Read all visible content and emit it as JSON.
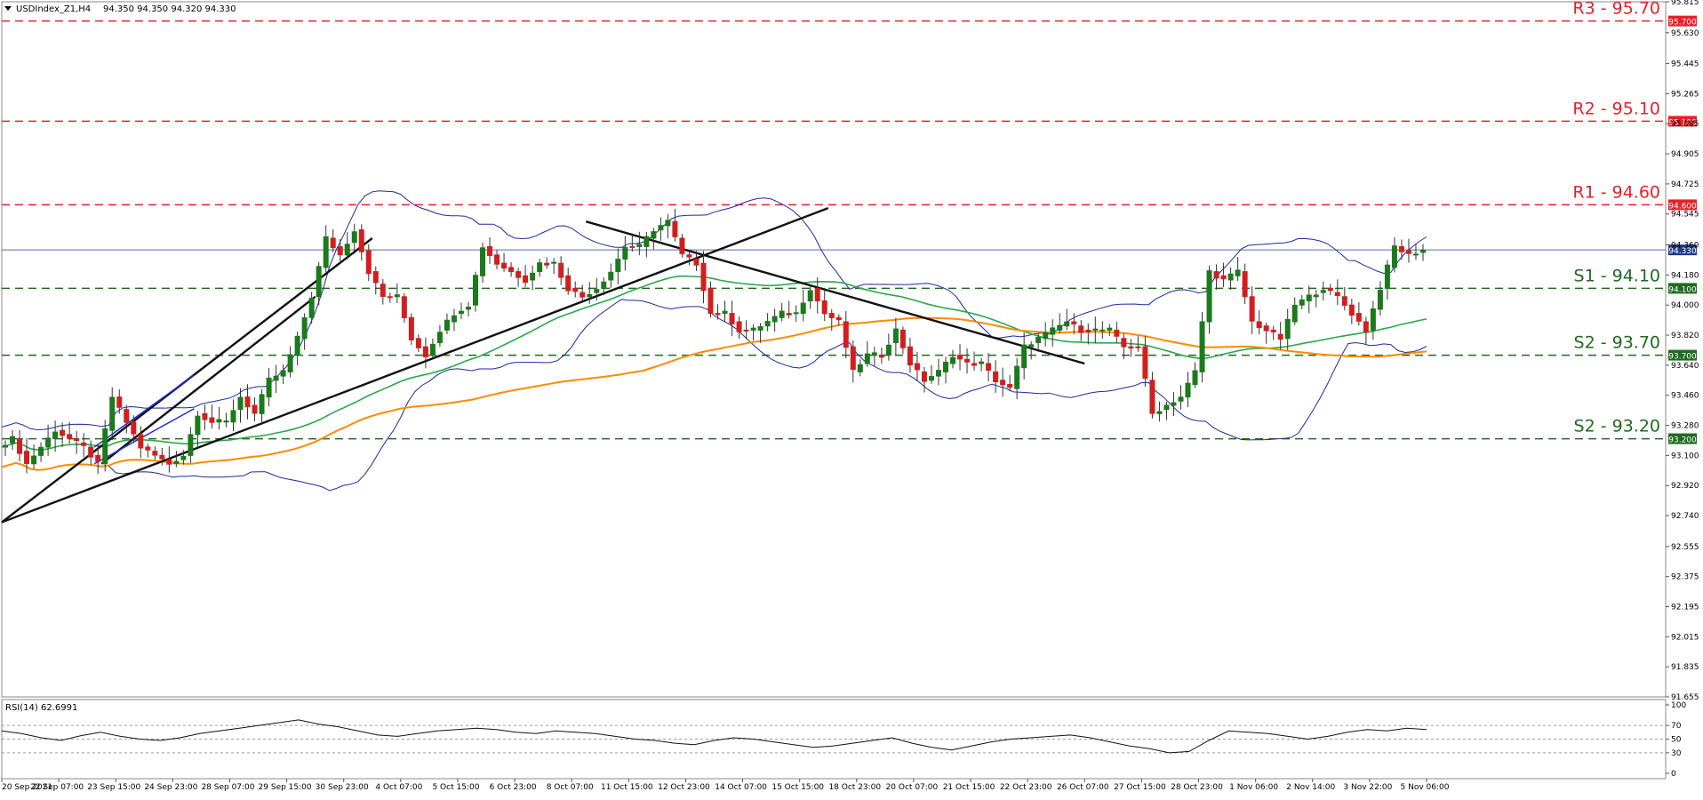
{
  "header": {
    "symbol_label": "USDIndex_Z1,H4",
    "ohlc_label": "94.350 94.350 94.320 94.330"
  },
  "rsi_panel": {
    "label": "RSI(14) 62.6991"
  },
  "colors": {
    "bull": "#1b7a1b",
    "bear": "#d11f1f",
    "resistance": "#e8202a",
    "support": "#1e6b1e",
    "bollinger": "#1e2a9b",
    "ma_green": "#2aa84a",
    "ma_orange": "#ff8a00",
    "trendline": "#111111",
    "channel": "#1a2fd6",
    "current_price": "#5a6e9e"
  },
  "chart_data": [
    {
      "type": "candlestick",
      "title": "",
      "ylim": [
        91.655,
        95.815
      ],
      "y_ticks": [
        "95.815",
        "95.630",
        "95.445",
        "95.265",
        "95.085",
        "94.905",
        "94.725",
        "94.545",
        "94.360",
        "94.180",
        "94.000",
        "93.820",
        "93.640",
        "93.460",
        "93.280",
        "93.100",
        "92.920",
        "92.740",
        "92.555",
        "92.375",
        "92.195",
        "92.015",
        "91.835",
        "91.655"
      ],
      "x_ticks": [
        "20 Sep 2021",
        "22 Sep 07:00",
        "23 Sep 15:00",
        "24 Sep 23:00",
        "28 Sep 07:00",
        "29 Sep 15:00",
        "30 Sep 23:00",
        "4 Oct 07:00",
        "5 Oct 15:00",
        "6 Oct 23:00",
        "8 Oct 07:00",
        "11 Oct 15:00",
        "12 Oct 23:00",
        "14 Oct 07:00",
        "15 Oct 15:00",
        "18 Oct 23:00",
        "20 Oct 07:00",
        "21 Oct 15:00",
        "22 Oct 23:00",
        "26 Oct 07:00",
        "27 Oct 15:00",
        "28 Oct 23:00",
        "1 Nov 06:00",
        "2 Nov 14:00",
        "3 Nov 22:00",
        "5 Nov 06:00"
      ],
      "levels": [
        {
          "label": "R3 - 95.70",
          "value": 95.7,
          "tag": "95.700",
          "kind": "resistance"
        },
        {
          "label": "R2 - 95.10",
          "value": 95.1,
          "tag": "95.100",
          "kind": "resistance"
        },
        {
          "label": "R1 - 94.60",
          "value": 94.6,
          "tag": "94.600",
          "kind": "resistance"
        },
        {
          "label": "S1 - 94.10",
          "value": 94.1,
          "tag": "94.100",
          "kind": "support"
        },
        {
          "label": "S2 - 93.70",
          "value": 93.7,
          "tag": "93.700",
          "kind": "support"
        },
        {
          "label": "S2 - 93.20",
          "value": 93.2,
          "tag": "93.200",
          "kind": "support"
        }
      ],
      "current_price": {
        "value": 94.33,
        "tag": "94.330"
      },
      "price_path": [
        [
          0,
          93.15
        ],
        [
          2,
          93.2
        ],
        [
          4,
          93.05
        ],
        [
          6,
          93.15
        ],
        [
          8,
          93.25
        ],
        [
          10,
          93.2
        ],
        [
          12,
          93.15
        ],
        [
          14,
          93.05
        ],
        [
          16,
          93.45
        ],
        [
          18,
          93.3
        ],
        [
          20,
          93.15
        ],
        [
          22,
          93.1
        ],
        [
          24,
          93.05
        ],
        [
          26,
          93.1
        ],
        [
          28,
          93.35
        ],
        [
          30,
          93.3
        ],
        [
          32,
          93.3
        ],
        [
          34,
          93.45
        ],
        [
          36,
          93.35
        ],
        [
          38,
          93.55
        ],
        [
          40,
          93.6
        ],
        [
          42,
          93.8
        ],
        [
          44,
          94.05
        ],
        [
          46,
          94.4
        ],
        [
          48,
          94.3
        ],
        [
          50,
          94.45
        ],
        [
          52,
          94.2
        ],
        [
          54,
          94.05
        ],
        [
          56,
          94.05
        ],
        [
          58,
          93.8
        ],
        [
          60,
          93.7
        ],
        [
          62,
          93.85
        ],
        [
          64,
          93.95
        ],
        [
          66,
          94.0
        ],
        [
          68,
          94.35
        ],
        [
          70,
          94.25
        ],
        [
          72,
          94.2
        ],
        [
          74,
          94.15
        ],
        [
          76,
          94.25
        ],
        [
          78,
          94.25
        ],
        [
          80,
          94.1
        ],
        [
          82,
          94.05
        ],
        [
          84,
          94.1
        ],
        [
          86,
          94.2
        ],
        [
          88,
          94.35
        ],
        [
          90,
          94.35
        ],
        [
          92,
          94.45
        ],
        [
          94,
          94.5
        ],
        [
          96,
          94.3
        ],
        [
          98,
          94.25
        ],
        [
          100,
          93.95
        ],
        [
          102,
          93.95
        ],
        [
          104,
          93.85
        ],
        [
          106,
          93.85
        ],
        [
          108,
          93.9
        ],
        [
          110,
          93.95
        ],
        [
          112,
          93.95
        ],
        [
          114,
          94.1
        ],
        [
          116,
          93.95
        ],
        [
          118,
          93.9
        ],
        [
          120,
          93.6
        ],
        [
          122,
          93.7
        ],
        [
          124,
          93.7
        ],
        [
          126,
          93.85
        ],
        [
          128,
          93.65
        ],
        [
          130,
          93.55
        ],
        [
          132,
          93.6
        ],
        [
          134,
          93.7
        ],
        [
          136,
          93.65
        ],
        [
          138,
          93.65
        ],
        [
          140,
          93.55
        ],
        [
          142,
          93.5
        ],
        [
          144,
          93.75
        ],
        [
          146,
          93.8
        ],
        [
          148,
          93.85
        ],
        [
          150,
          93.9
        ],
        [
          152,
          93.85
        ],
        [
          154,
          93.85
        ],
        [
          156,
          93.85
        ],
        [
          158,
          93.75
        ],
        [
          160,
          93.75
        ],
        [
          162,
          93.35
        ],
        [
          164,
          93.4
        ],
        [
          166,
          93.45
        ],
        [
          168,
          93.6
        ],
        [
          170,
          94.2
        ],
        [
          172,
          94.15
        ],
        [
          174,
          94.2
        ],
        [
          176,
          93.9
        ],
        [
          178,
          93.85
        ],
        [
          180,
          93.8
        ],
        [
          182,
          94.0
        ],
        [
          184,
          94.05
        ],
        [
          186,
          94.1
        ],
        [
          188,
          94.05
        ],
        [
          190,
          93.95
        ],
        [
          192,
          93.85
        ],
        [
          194,
          94.1
        ],
        [
          196,
          94.35
        ],
        [
          198,
          94.3
        ],
        [
          200,
          94.33
        ]
      ],
      "trendlines": [
        {
          "color": "trendline",
          "points": [
            [
              0,
              92.7
            ],
            [
              116,
              94.58
            ]
          ]
        },
        {
          "color": "trendline",
          "points": [
            [
              0,
              92.7
            ],
            [
              52,
              94.4
            ]
          ]
        },
        {
          "color": "trendline",
          "points": [
            [
              14,
              93.05
            ],
            [
              44,
              94.05
            ]
          ]
        },
        {
          "color": "trendline",
          "points": [
            [
              82,
              94.5
            ],
            [
              152,
              93.65
            ]
          ]
        }
      ],
      "channel": [
        {
          "points": [
            [
              13,
              93.15
            ],
            [
              27,
              93.58
            ]
          ]
        },
        {
          "points": [
            [
              13,
              93.05
            ],
            [
              27,
              93.38
            ]
          ]
        }
      ]
    },
    {
      "type": "line",
      "title": "",
      "series": [
        {
          "values": [
            62,
            58,
            52,
            48,
            55,
            60,
            54,
            50,
            48,
            52,
            58,
            62,
            66,
            70,
            74,
            78,
            72,
            68,
            62,
            56,
            54,
            58,
            62,
            64,
            66,
            64,
            60,
            58,
            62,
            60,
            58,
            54,
            50,
            48,
            44,
            42,
            48,
            52,
            50,
            46,
            42,
            38,
            40,
            44,
            48,
            52,
            44,
            38,
            34,
            40,
            46,
            50,
            52,
            54,
            56,
            52,
            46,
            40,
            36,
            30,
            32,
            48,
            62,
            60,
            58,
            54,
            50,
            54,
            60,
            64,
            62,
            66,
            64
          ]
        }
      ],
      "ylim": [
        0,
        100
      ],
      "y_ticks": [
        "100",
        "70",
        "50",
        "30",
        "0"
      ],
      "levels": [
        70,
        50,
        30
      ]
    }
  ]
}
